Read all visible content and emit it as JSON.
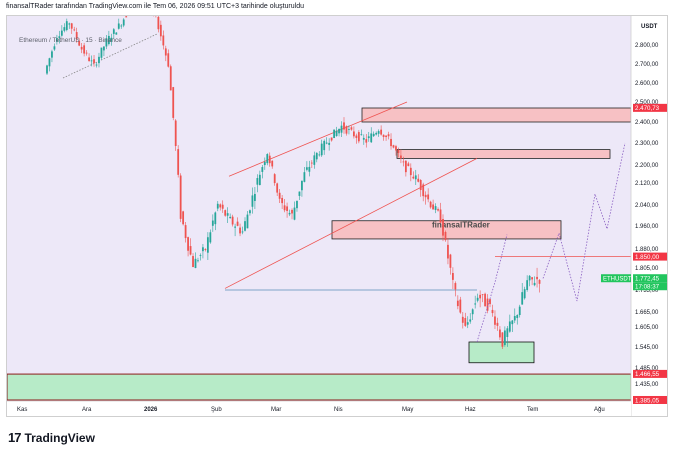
{
  "header": {
    "title": "finansalTRader tarafından TradingView.com ile Tem 06, 2026 09:51 UTC+3 tarihinde oluşturuldu"
  },
  "symbol_line": "Ethereum / TetherUS · 15 · Binance",
  "watermark": "finansalTRader",
  "footer": {
    "logo_mark": "17",
    "brand": "TradingView"
  },
  "colors": {
    "up": "#26a69a",
    "down": "#ef5350",
    "zone_fill": "#f7c1c4",
    "zone_stroke": "#222222",
    "support_fill": "#b7ebc8",
    "support_stroke": "#8b1a1a",
    "bg_tint": "#ede8f8",
    "channel": "#ef5350",
    "tag_red": "#f23645",
    "tag_green": "#22c55e"
  },
  "chart_data": {
    "type": "candlestick",
    "symbol": "ETHUSDT",
    "currency": "USDT",
    "ylim": [
      1380,
      2930
    ],
    "y_ticks": [
      "2.800,00",
      "2.700,00",
      "2.600,00",
      "2.500,00",
      "2.400,00",
      "2.300,00",
      "2.200,00",
      "2.120,00",
      "2.040,00",
      "1.960,00",
      "1.880,00",
      "1.805,00",
      "1.735,00",
      "1.665,00",
      "1.605,00",
      "1.545,00",
      "1.485,00",
      "1.435,00"
    ],
    "x_ticks": [
      "Kas",
      "Ara",
      "2026",
      "Şub",
      "Mar",
      "Nis",
      "May",
      "Haz",
      "Tem",
      "Ağu"
    ],
    "price_tags": [
      {
        "label": "2.470,73",
        "value": 2470.73,
        "kind": "red"
      },
      {
        "label": "1.850,00",
        "value": 1850,
        "kind": "red"
      },
      {
        "label": "ETHUSDT",
        "value": 1772.45,
        "kind": "green-symbol"
      },
      {
        "label": "1.772,45",
        "value": 1772.45,
        "kind": "green"
      },
      {
        "label": "17:08:37",
        "value": 1755,
        "kind": "green"
      },
      {
        "label": "1.466,55",
        "value": 1466.55,
        "kind": "red"
      },
      {
        "label": "1.385,05",
        "value": 1385.05,
        "kind": "red"
      }
    ],
    "resistance_zones": [
      {
        "from": "Nis",
        "to_edge": true,
        "low": 2400,
        "high": 2470
      },
      {
        "from": "May",
        "to": "Tem+",
        "low": 2230,
        "high": 2270
      },
      {
        "from": "Mar+",
        "to": "Tem+",
        "low": 1915,
        "high": 1980
      }
    ],
    "support_zones": [
      {
        "low": 1385,
        "high": 1466,
        "full_width": true
      },
      {
        "from": "Haz",
        "to": "Tem",
        "low": 1500,
        "high": 1560
      }
    ],
    "series": [
      {
        "name": "ETHUSDT",
        "close": [
          2650,
          2850,
          2920,
          2780,
          2690,
          2820,
          2900,
          3000,
          3050,
          2950,
          2700,
          2000,
          1820,
          1880,
          2040,
          1980,
          1940,
          2100,
          2260,
          2050,
          2000,
          2160,
          2250,
          2320,
          2380,
          2340,
          2310,
          2370,
          2300,
          2200,
          2140,
          2060,
          1990,
          1750,
          1600,
          1720,
          1680,
          1560,
          1640,
          1760,
          1772
        ]
      }
    ],
    "annotations": [
      {
        "type": "projection",
        "points": [
          [
            1772,
            1850
          ],
          [
            1700,
            1990
          ],
          [
            1840,
            2300
          ]
        ],
        "style": "dotted"
      }
    ]
  }
}
